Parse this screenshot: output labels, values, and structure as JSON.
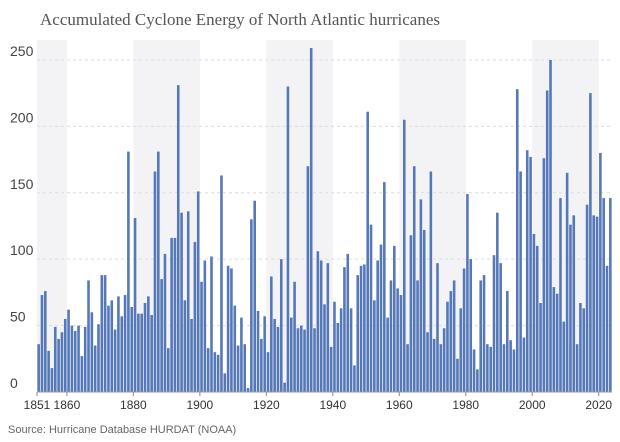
{
  "chart_data": {
    "type": "bar",
    "title": "Accumulated Cyclone Energy of North Atlantic hurricanes",
    "source": "Source: Hurricane Database HURDAT (NOAA)",
    "color": "#5578b8",
    "grid": true,
    "xlim": [
      1851,
      2024
    ],
    "ylim": [
      0,
      265
    ],
    "xticks": [
      1851,
      1860,
      1880,
      1900,
      1920,
      1940,
      1960,
      1980,
      2000,
      2020
    ],
    "yticks": [
      0,
      50,
      100,
      150,
      200,
      250
    ],
    "shaded_periods": [
      [
        1851,
        1860
      ],
      [
        1880,
        1900
      ],
      [
        1920,
        1940
      ],
      [
        1960,
        1980
      ],
      [
        2000,
        2020
      ]
    ],
    "x": [
      1851,
      1852,
      1853,
      1854,
      1855,
      1856,
      1857,
      1858,
      1859,
      1860,
      1861,
      1862,
      1863,
      1864,
      1865,
      1866,
      1867,
      1868,
      1869,
      1870,
      1871,
      1872,
      1873,
      1874,
      1875,
      1876,
      1877,
      1878,
      1879,
      1880,
      1881,
      1882,
      1883,
      1884,
      1885,
      1886,
      1887,
      1888,
      1889,
      1890,
      1891,
      1892,
      1893,
      1894,
      1895,
      1896,
      1897,
      1898,
      1899,
      1900,
      1901,
      1902,
      1903,
      1904,
      1905,
      1906,
      1907,
      1908,
      1909,
      1910,
      1911,
      1912,
      1913,
      1914,
      1915,
      1916,
      1917,
      1918,
      1919,
      1920,
      1921,
      1922,
      1923,
      1924,
      1925,
      1926,
      1927,
      1928,
      1929,
      1930,
      1931,
      1932,
      1933,
      1934,
      1935,
      1936,
      1937,
      1938,
      1939,
      1940,
      1941,
      1942,
      1943,
      1944,
      1945,
      1946,
      1947,
      1948,
      1949,
      1950,
      1951,
      1952,
      1953,
      1954,
      1955,
      1956,
      1957,
      1958,
      1959,
      1960,
      1961,
      1962,
      1963,
      1964,
      1965,
      1966,
      1967,
      1968,
      1969,
      1970,
      1971,
      1972,
      1973,
      1974,
      1975,
      1976,
      1977,
      1978,
      1979,
      1980,
      1981,
      1982,
      1983,
      1984,
      1985,
      1986,
      1987,
      1988,
      1989,
      1990,
      1991,
      1992,
      1993,
      1994,
      1995,
      1996,
      1997,
      1998,
      1999,
      2000,
      2001,
      2002,
      2003,
      2004,
      2005,
      2006,
      2007,
      2008,
      2009,
      2010,
      2011,
      2012,
      2013,
      2014,
      2015,
      2016,
      2017,
      2018,
      2019,
      2020,
      2021,
      2022,
      2023
    ],
    "values": [
      36,
      73,
      76,
      31,
      18,
      49,
      40,
      45,
      55,
      62,
      50,
      46,
      50,
      27,
      49,
      84,
      60,
      35,
      51,
      88,
      88,
      65,
      69,
      47,
      72,
      57,
      73,
      181,
      64,
      131,
      59,
      59,
      67,
      72,
      58,
      166,
      181,
      85,
      104,
      33,
      116,
      116,
      231,
      135,
      69,
      136,
      55,
      113,
      151,
      83,
      99,
      33,
      102,
      30,
      28,
      163,
      14,
      95,
      93,
      65,
      35,
      56,
      36,
      3,
      130,
      144,
      61,
      40,
      57,
      30,
      87,
      55,
      49,
      100,
      7,
      230,
      56,
      83,
      48,
      50,
      47,
      170,
      259,
      48,
      106,
      99,
      66,
      97,
      34,
      68,
      52,
      63,
      94,
      104,
      63,
      20,
      88,
      95,
      96,
      211,
      126,
      69,
      99,
      111,
      158,
      56,
      84,
      110,
      78,
      73,
      205,
      36,
      118,
      170,
      84,
      145,
      122,
      45,
      166,
      40,
      97,
      36,
      48,
      68,
      76,
      84,
      25,
      63,
      93,
      149,
      100,
      32,
      17,
      84,
      88,
      36,
      34,
      103,
      135,
      97,
      36,
      76,
      39,
      32,
      228,
      166,
      41,
      182,
      177,
      119,
      110,
      67,
      176,
      227,
      250,
      79,
      74,
      146,
      53,
      165,
      126,
      133,
      36,
      67,
      63,
      141,
      225,
      133,
      132,
      180,
      146,
      95,
      146
    ]
  }
}
